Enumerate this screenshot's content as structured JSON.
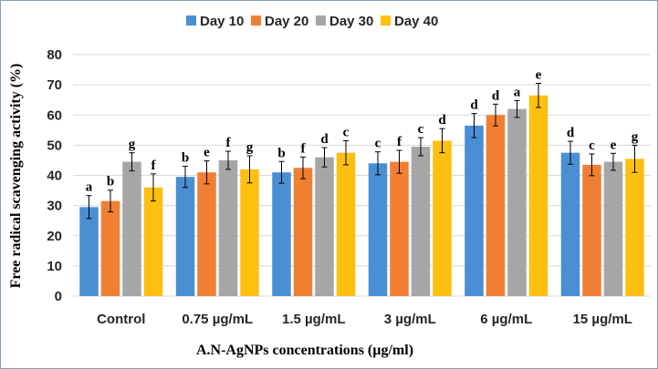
{
  "chart_data": {
    "type": "bar",
    "title": "",
    "xlabel": "A.N-AgNPs concentrations (µg/ml)",
    "ylabel": "Free radical scavenging activity (%)",
    "ylim": [
      0,
      80
    ],
    "yticks": [
      0,
      10,
      20,
      30,
      40,
      50,
      60,
      70,
      80
    ],
    "grid": true,
    "legend_position": "top-center",
    "categories": [
      "Control",
      "0.75 µg/mL",
      "1.5 µg/mL",
      "3 µg/mL",
      "6 µg/mL",
      "15 µg/mL"
    ],
    "series": [
      {
        "name": "Day 10",
        "color": "#4a8fd4",
        "values": [
          29.5,
          39.5,
          41.0,
          44.0,
          56.5,
          47.5
        ],
        "errors": [
          3.8,
          3.5,
          3.6,
          3.8,
          4.0,
          3.8
        ],
        "labels": [
          "a",
          "b",
          "b",
          "c",
          "d",
          "d"
        ]
      },
      {
        "name": "Day 20",
        "color": "#f07f33",
        "values": [
          31.5,
          41.0,
          42.5,
          44.5,
          60.0,
          43.5
        ],
        "errors": [
          3.6,
          3.8,
          3.6,
          3.8,
          3.6,
          3.6
        ],
        "labels": [
          "b",
          "e",
          "f",
          "f",
          "d",
          "c"
        ]
      },
      {
        "name": "Day 30",
        "color": "#a6a6a6",
        "values": [
          44.5,
          45.0,
          46.0,
          49.5,
          62.0,
          44.5
        ],
        "errors": [
          3.0,
          3.0,
          3.2,
          3.0,
          2.8,
          2.8
        ],
        "labels": [
          "g",
          "f",
          "d",
          "c",
          "a",
          "e"
        ]
      },
      {
        "name": "Day 40",
        "color": "#fdc010",
        "values": [
          36.0,
          42.0,
          47.5,
          51.5,
          66.5,
          45.5
        ],
        "errors": [
          4.5,
          4.5,
          4.0,
          4.0,
          4.0,
          4.5
        ],
        "labels": [
          "f",
          "g",
          "c",
          "d",
          "e",
          "g"
        ]
      }
    ]
  }
}
